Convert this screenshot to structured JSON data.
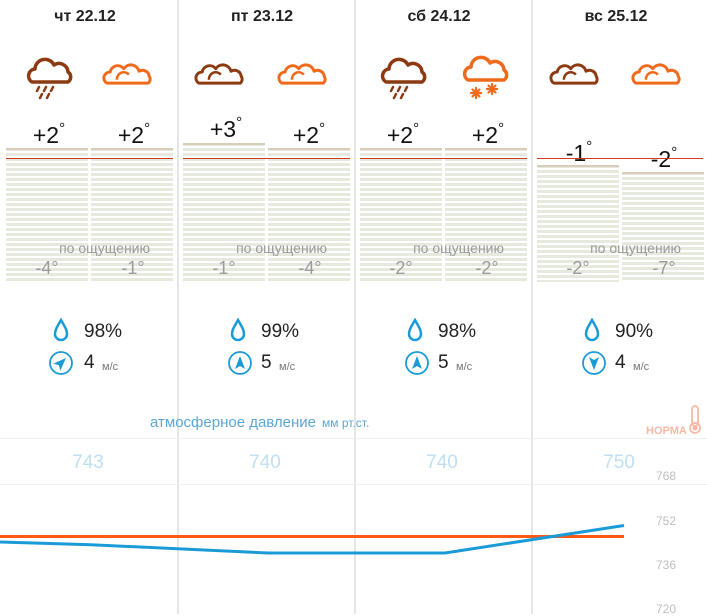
{
  "days": [
    {
      "date": "чт 22.12",
      "icons": [
        "cloud-rain-icon",
        "cloud-icon"
      ],
      "temps": [
        "+2",
        "+2"
      ],
      "feels_label": "по ощущению",
      "feels": [
        "-4°",
        "-1°"
      ],
      "humidity": "98%",
      "wind_speed": "4",
      "wind_unit": "м/с",
      "wind_direction": "southwest",
      "pressure": "743"
    },
    {
      "date": "пт 23.12",
      "icons": [
        "cloud-icon",
        "cloud-icon"
      ],
      "temps": [
        "+3",
        "+2"
      ],
      "feels_label": "по ощущению",
      "feels": [
        "-1°",
        "-4°"
      ],
      "humidity": "99%",
      "wind_speed": "5",
      "wind_unit": "м/с",
      "wind_direction": "south",
      "pressure": "740"
    },
    {
      "date": "сб 24.12",
      "icons": [
        "cloud-rain-icon",
        "cloud-snow-icon"
      ],
      "temps": [
        "+2",
        "+2"
      ],
      "feels_label": "по ощущению",
      "feels": [
        "-2°",
        "-2°"
      ],
      "humidity": "98%",
      "wind_speed": "5",
      "wind_unit": "м/с",
      "wind_direction": "south",
      "pressure": "740"
    },
    {
      "date": "вс 25.12",
      "icons": [
        "cloud-icon",
        "cloud-icon"
      ],
      "temps": [
        "-1",
        "-2"
      ],
      "feels_label": "по ощущению",
      "feels": [
        "-2°",
        "-7°"
      ],
      "humidity": "90%",
      "wind_speed": "4",
      "wind_unit": "м/с",
      "wind_direction": "north",
      "pressure": "750"
    }
  ],
  "degree_symbol": "°",
  "pressure": {
    "title": "атмосферное давление",
    "unit": "мм рт.ст.",
    "norma_label": "НОРМА",
    "y_ticks": [
      "768",
      "752",
      "736",
      "720"
    ],
    "norm_value": 746
  },
  "colors": {
    "night_icon": "#8b3a12",
    "day_icon": "#f06a1c",
    "accent_blue": "#1a9bd8",
    "norm_line": "#ff5a14",
    "feels_text": "#9a9a9a"
  }
}
